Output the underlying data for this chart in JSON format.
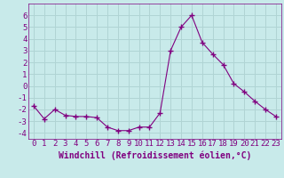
{
  "x": [
    0,
    1,
    2,
    3,
    4,
    5,
    6,
    7,
    8,
    9,
    10,
    11,
    12,
    13,
    14,
    15,
    16,
    17,
    18,
    19,
    20,
    21,
    22,
    23
  ],
  "y": [
    -1.7,
    -2.8,
    -2.0,
    -2.5,
    -2.6,
    -2.6,
    -2.7,
    -3.5,
    -3.8,
    -3.8,
    -3.5,
    -3.5,
    -2.3,
    3.0,
    5.0,
    6.0,
    3.7,
    2.7,
    1.8,
    0.2,
    -0.5,
    -1.3,
    -2.0,
    -2.6
  ],
  "line_color": "#800080",
  "marker": "+",
  "marker_size": 4,
  "bg_color": "#c8eaea",
  "grid_color": "#b0d4d4",
  "xlabel": "Windchill (Refroidissement éolien,°C)",
  "xlabel_fontsize": 7,
  "tick_fontsize": 6.5,
  "ylim": [
    -4.5,
    7.0
  ],
  "xlim": [
    -0.5,
    23.5
  ],
  "yticks": [
    -4,
    -3,
    -2,
    -1,
    0,
    1,
    2,
    3,
    4,
    5,
    6
  ],
  "xticks": [
    0,
    1,
    2,
    3,
    4,
    5,
    6,
    7,
    8,
    9,
    10,
    11,
    12,
    13,
    14,
    15,
    16,
    17,
    18,
    19,
    20,
    21,
    22,
    23
  ]
}
